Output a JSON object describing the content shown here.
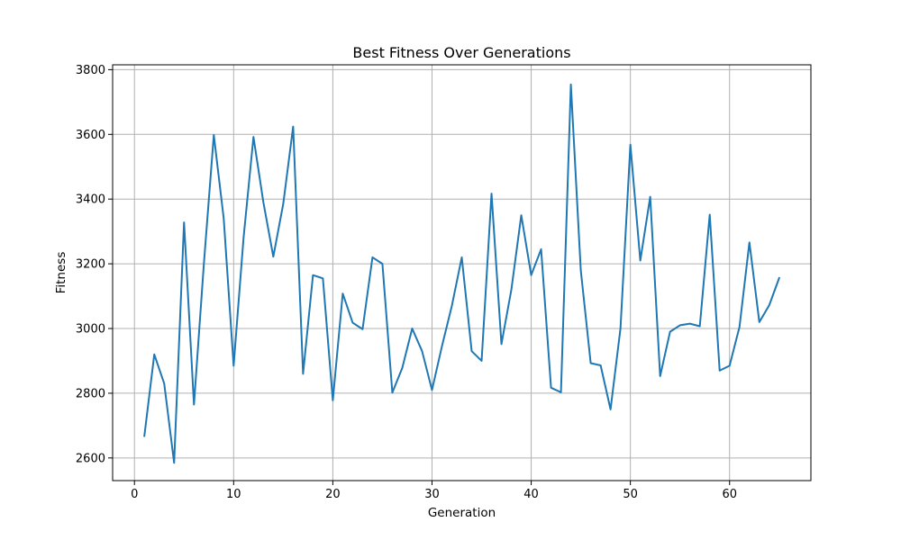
{
  "chart_data": {
    "type": "line",
    "title": "Best Fitness Over Generations",
    "xlabel": "Generation",
    "ylabel": "Fitness",
    "xlim": [
      -2.2,
      68.2
    ],
    "ylim": [
      2530,
      3815
    ],
    "xticks": [
      0,
      10,
      20,
      30,
      40,
      50,
      60
    ],
    "yticks": [
      2600,
      2800,
      3000,
      3200,
      3400,
      3600,
      3800
    ],
    "grid": true,
    "color": "#1f77b4",
    "series": [
      {
        "x": [
          1,
          2,
          3,
          4,
          5,
          6,
          7,
          8,
          9,
          10,
          11,
          12,
          13,
          14,
          15,
          16,
          17,
          18,
          19,
          20,
          21,
          22,
          23,
          24,
          25,
          26,
          27,
          28,
          29,
          30,
          31,
          32,
          33,
          34,
          35,
          36,
          37,
          38,
          39,
          40,
          41,
          42,
          43,
          44,
          45,
          46,
          47,
          48,
          49,
          50,
          51,
          52,
          53,
          54,
          55,
          56,
          57,
          58,
          59,
          60,
          61,
          62,
          63,
          64,
          65
        ],
        "y": [
          2668,
          2920,
          2830,
          2585,
          3328,
          2765,
          3200,
          3598,
          3340,
          2885,
          3280,
          3592,
          3390,
          3222,
          3385,
          3624,
          2860,
          3165,
          3155,
          2778,
          3108,
          3018,
          2998,
          3220,
          3200,
          2802,
          2878,
          3000,
          2930,
          2810,
          2945,
          3070,
          3220,
          2930,
          2900,
          3417,
          2952,
          3120,
          3350,
          3165,
          3245,
          2817,
          2803,
          3754,
          3180,
          2893,
          2886,
          2750,
          3000,
          3568,
          3210,
          3407,
          2853,
          2990,
          3010,
          3015,
          3007,
          3352,
          2870,
          2885,
          3005,
          3266,
          3020,
          3072,
          3156
        ]
      }
    ]
  }
}
